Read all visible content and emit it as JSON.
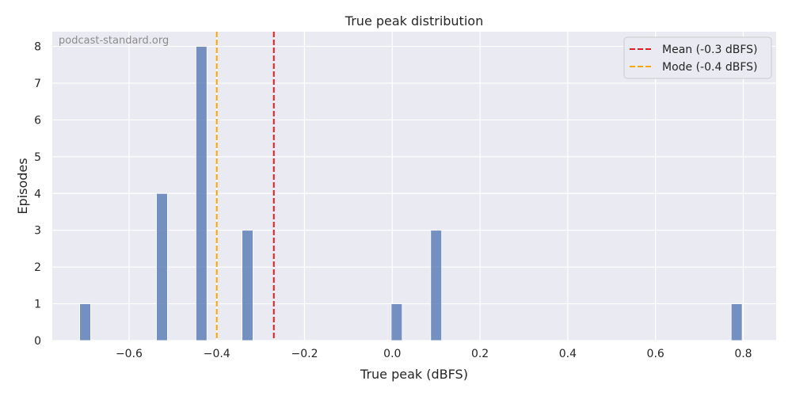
{
  "chart_data": {
    "type": "bar",
    "title": "True peak distribution",
    "xlabel": "True peak (dBFS)",
    "ylabel": "Episodes",
    "watermark": "podcast-standard.org",
    "xlim": [
      -0.775,
      0.875
    ],
    "ylim": [
      0,
      8.4
    ],
    "bin_width": 0.025,
    "xticks": [
      -0.6,
      -0.4,
      -0.2,
      0.0,
      0.2,
      0.4,
      0.6,
      0.8
    ],
    "xtick_labels": [
      "−0.6",
      "−0.4",
      "−0.2",
      "0.0",
      "0.2",
      "0.4",
      "0.6",
      "0.8"
    ],
    "yticks": [
      0,
      1,
      2,
      3,
      4,
      5,
      6,
      7,
      8
    ],
    "ytick_labels": [
      "0",
      "1",
      "2",
      "3",
      "4",
      "5",
      "6",
      "7",
      "8"
    ],
    "grid": true,
    "legend_position": "top-right",
    "bar_color": "#4c72b0",
    "bars": [
      {
        "x": -0.7,
        "count": 1
      },
      {
        "x": -0.525,
        "count": 4
      },
      {
        "x": -0.435,
        "count": 8
      },
      {
        "x": -0.33,
        "count": 3
      },
      {
        "x": 0.01,
        "count": 1
      },
      {
        "x": 0.1,
        "count": 3
      },
      {
        "x": 0.785,
        "count": 1
      }
    ],
    "reference_lines": [
      {
        "name": "Mean (-0.3 dBFS)",
        "x": -0.27,
        "color": "#e41a1c"
      },
      {
        "name": "Mode (-0.4 dBFS)",
        "x": -0.4,
        "color": "#ffa500"
      }
    ]
  }
}
